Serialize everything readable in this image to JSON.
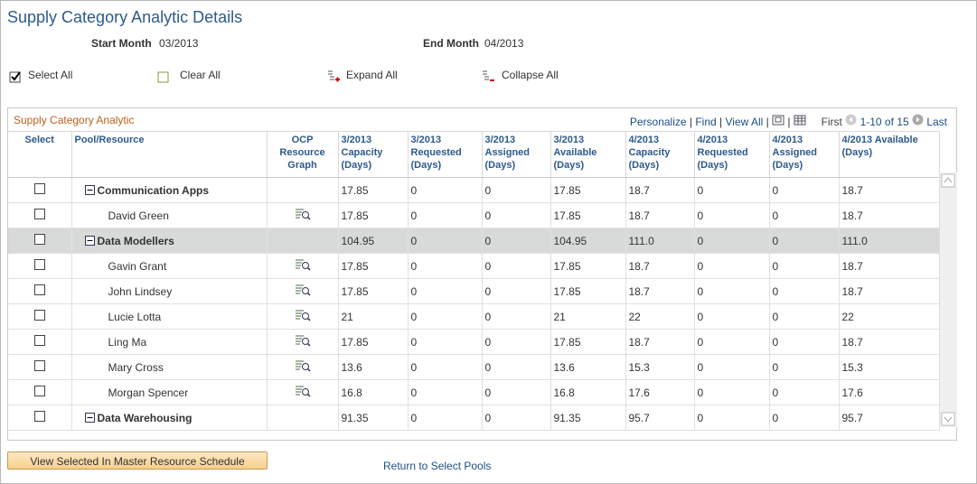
{
  "title": "Supply Category Analytic Details",
  "filters": {
    "start_label": "Start Month",
    "start_value": "03/2013",
    "end_label": "End Month",
    "end_value": "04/2013"
  },
  "actions": [
    "Select All",
    "Clear All",
    "Expand All",
    "Collapse All"
  ],
  "grid": {
    "title": "Supply Category Analytic",
    "nav": [
      "Personalize",
      "Find",
      "View All"
    ],
    "first": "First",
    "range": "1-10 of 15",
    "last": "Last",
    "columns": [
      "Select",
      "Pool/Resource",
      "OCP Resource Graph",
      "3/2013 Capacity (Days)",
      "3/2013 Requested (Days)",
      "3/2013 Assigned (Days)",
      "3/2013 Available (Days)",
      "4/2013 Capacity (Days)",
      "4/2013 Requested (Days)",
      "4/2013 Assigned (Days)",
      "4/2013 Available (Days)"
    ],
    "rows": [
      {
        "name": "Communication Apps",
        "group": true,
        "values": [
          "17.85",
          "0",
          "0",
          "17.85",
          "18.7",
          "0",
          "0",
          "18.7"
        ]
      },
      {
        "name": "David Green",
        "group": false,
        "values": [
          "17.85",
          "0",
          "0",
          "17.85",
          "18.7",
          "0",
          "0",
          "18.7"
        ]
      },
      {
        "name": "Data Modellers",
        "group": true,
        "selected": true,
        "values": [
          "104.95",
          "0",
          "0",
          "104.95",
          "111.0",
          "0",
          "0",
          "111.0"
        ]
      },
      {
        "name": "Gavin Grant",
        "group": false,
        "values": [
          "17.85",
          "0",
          "0",
          "17.85",
          "18.7",
          "0",
          "0",
          "18.7"
        ]
      },
      {
        "name": "John Lindsey",
        "group": false,
        "values": [
          "17.85",
          "0",
          "0",
          "17.85",
          "18.7",
          "0",
          "0",
          "18.7"
        ]
      },
      {
        "name": "Lucie Lotta",
        "group": false,
        "values": [
          "21",
          "0",
          "0",
          "21",
          "22",
          "0",
          "0",
          "22"
        ]
      },
      {
        "name": "Ling Ma",
        "group": false,
        "values": [
          "17.85",
          "0",
          "0",
          "17.85",
          "18.7",
          "0",
          "0",
          "18.7"
        ]
      },
      {
        "name": "Mary Cross",
        "group": false,
        "values": [
          "13.6",
          "0",
          "0",
          "13.6",
          "15.3",
          "0",
          "0",
          "15.3"
        ]
      },
      {
        "name": "Morgan Spencer",
        "group": false,
        "values": [
          "16.8",
          "0",
          "0",
          "16.8",
          "17.6",
          "0",
          "0",
          "17.6"
        ]
      },
      {
        "name": "Data Warehousing",
        "group": true,
        "values": [
          "91.35",
          "0",
          "0",
          "91.35",
          "95.7",
          "0",
          "0",
          "95.7"
        ]
      }
    ]
  },
  "buttons": {
    "view": "View Selected In Master Resource Schedule",
    "return": "Return to Select Pools"
  }
}
